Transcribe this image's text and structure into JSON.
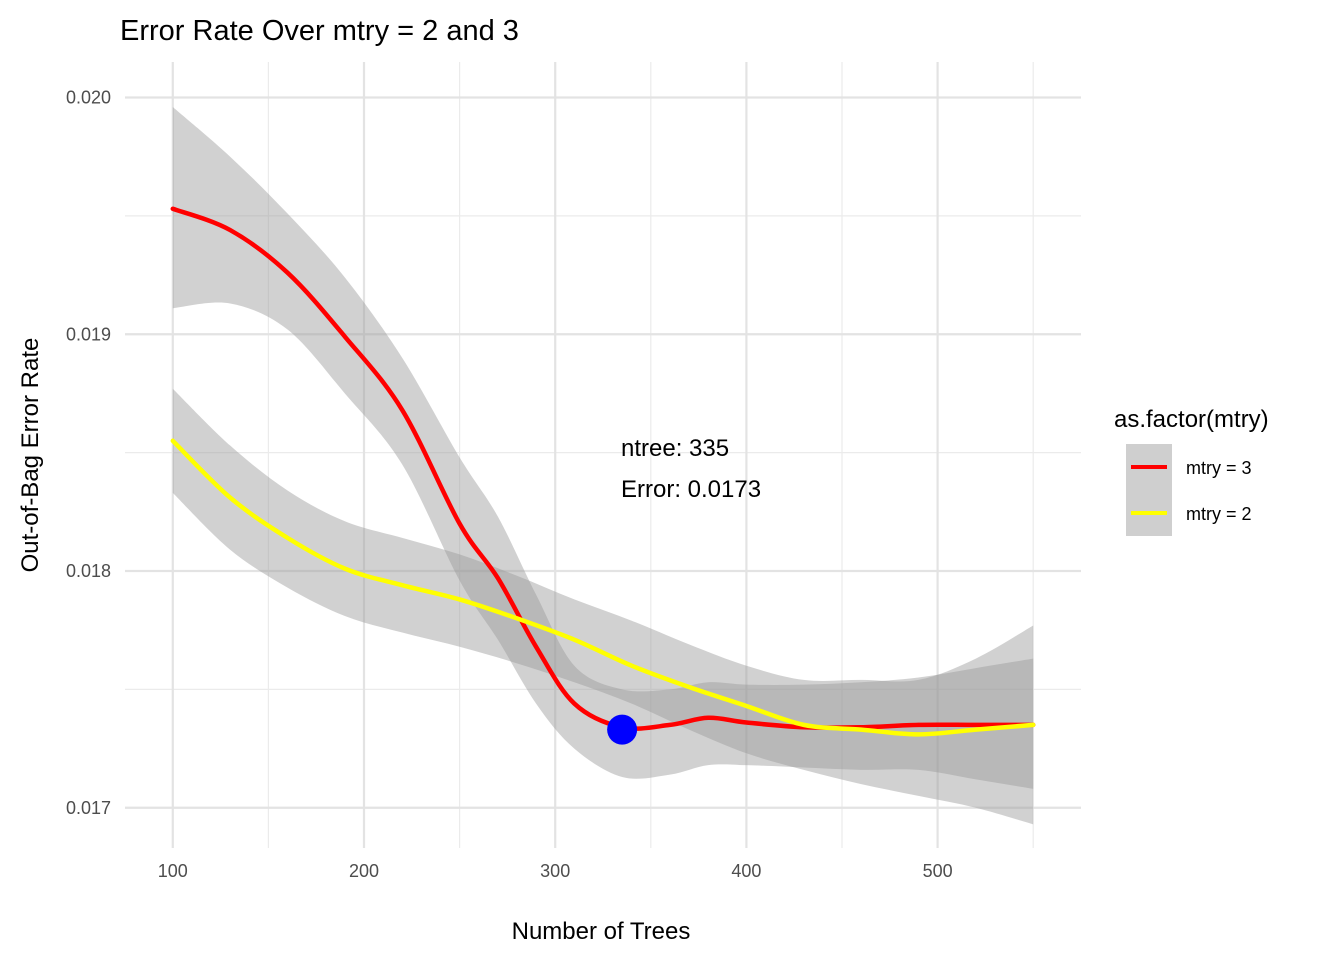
{
  "chart_data": {
    "type": "line",
    "title": "Error Rate Over mtry = 2 and 3",
    "xlabel": "Number of Trees",
    "ylabel": "Out-of-Bag Error Rate",
    "xlim": [
      75,
      575
    ],
    "ylim": [
      0.01683,
      0.02015
    ],
    "x_ticks": [
      100,
      200,
      300,
      400,
      500
    ],
    "x_tick_labels": [
      "100",
      "200",
      "300",
      "400",
      "500"
    ],
    "y_ticks": [
      0.017,
      0.018,
      0.019,
      0.02
    ],
    "y_tick_labels": [
      "0.017",
      "0.018",
      "0.019",
      "0.020"
    ],
    "grid": true,
    "legend": {
      "title": "as.factor(mtry)",
      "position": "right",
      "entries": [
        "mtry = 3",
        "mtry = 2"
      ]
    },
    "series": [
      {
        "name": "mtry = 3",
        "color": "#ff0000",
        "x": [
          100,
          130,
          160,
          190,
          220,
          250,
          270,
          290,
          310,
          335,
          360,
          380,
          400,
          430,
          460,
          490,
          520,
          550
        ],
        "y": [
          0.01953,
          0.01944,
          0.01926,
          0.01899,
          0.01868,
          0.0182,
          0.01797,
          0.01768,
          0.01744,
          0.01734,
          0.01735,
          0.01738,
          0.01736,
          0.01734,
          0.01734,
          0.01735,
          0.01735,
          0.01735
        ],
        "band_upper": [
          0.01996,
          0.01975,
          0.01951,
          0.01924,
          0.0189,
          0.01848,
          0.01823,
          0.0179,
          0.0176,
          0.0175,
          0.0175,
          0.01753,
          0.01752,
          0.01752,
          0.01753,
          0.01755,
          0.01759,
          0.01763
        ],
        "band_lower": [
          0.01911,
          0.01913,
          0.01902,
          0.01875,
          0.01845,
          0.01796,
          0.01771,
          0.01744,
          0.01725,
          0.01713,
          0.01714,
          0.01718,
          0.01718,
          0.01717,
          0.01716,
          0.01716,
          0.01712,
          0.01708
        ]
      },
      {
        "name": "mtry = 2",
        "color": "#ffff00",
        "x": [
          100,
          130,
          160,
          190,
          220,
          250,
          280,
          310,
          340,
          370,
          400,
          430,
          460,
          490,
          520,
          550
        ],
        "y": [
          0.01855,
          0.01831,
          0.01814,
          0.01801,
          0.01794,
          0.01788,
          0.0178,
          0.01771,
          0.0176,
          0.01751,
          0.01743,
          0.01735,
          0.01733,
          0.01731,
          0.01733,
          0.01735
        ],
        "band_upper": [
          0.01877,
          0.01853,
          0.01834,
          0.01821,
          0.01814,
          0.01807,
          0.01798,
          0.01788,
          0.01779,
          0.01769,
          0.0176,
          0.01754,
          0.01754,
          0.01754,
          0.01763,
          0.01777
        ],
        "band_lower": [
          0.01833,
          0.01809,
          0.01793,
          0.01781,
          0.01774,
          0.01768,
          0.01761,
          0.01753,
          0.01744,
          0.01733,
          0.01723,
          0.01716,
          0.0171,
          0.01705,
          0.017,
          0.01693
        ]
      }
    ],
    "highlight_point": {
      "x": 335,
      "y": 0.01733,
      "color": "#0000ff"
    },
    "annotation": {
      "x": 335,
      "lines": [
        "ntree: 335",
        "Error: 0.0173"
      ]
    }
  }
}
